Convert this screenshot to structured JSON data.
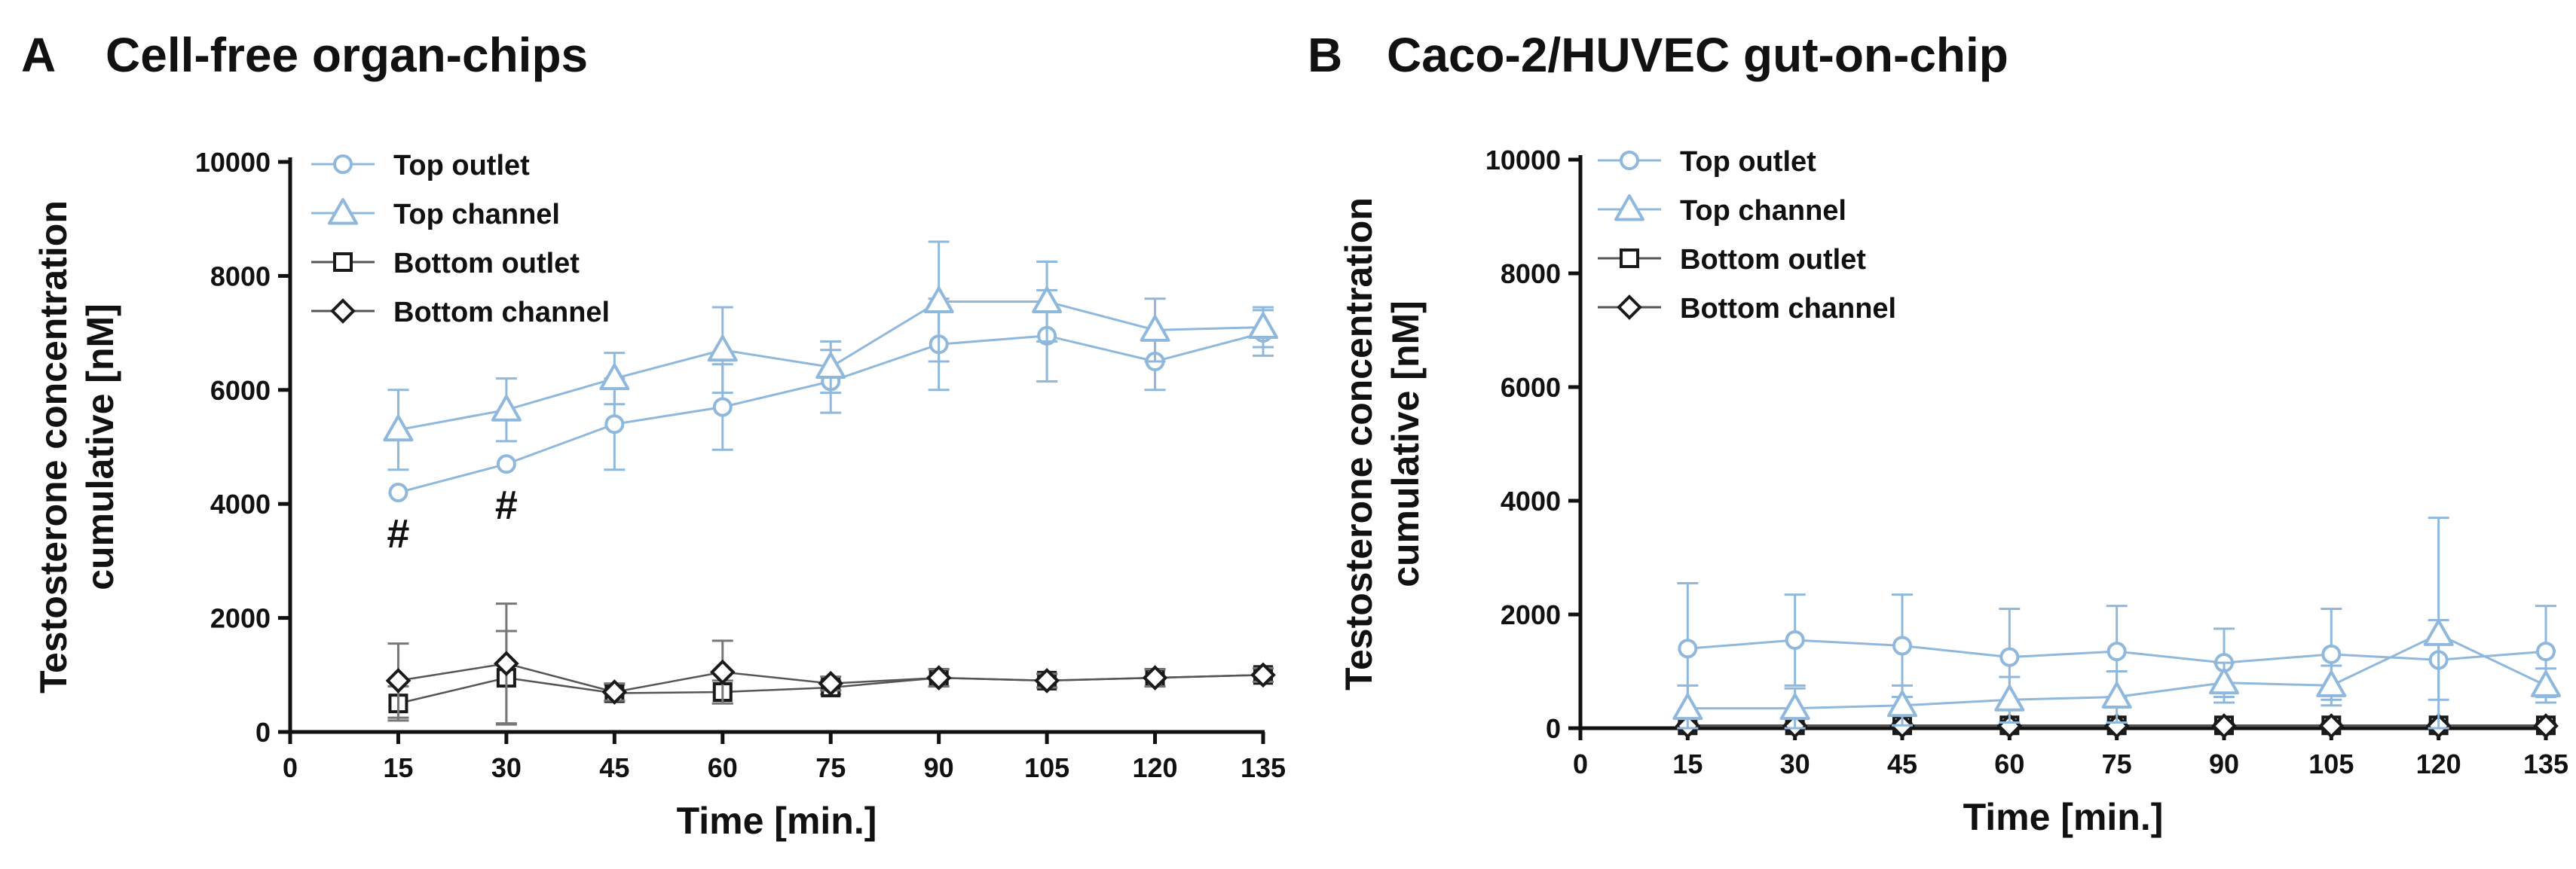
{
  "colors": {
    "blue": "#8fb8dc",
    "black": "#1a1a1a",
    "dark_line": "#444444"
  },
  "chart_data": [
    {
      "type": "line",
      "panel_letter": "A",
      "title": "Cell-free organ-chips",
      "ylabel_lines": [
        "Testosterone concentration",
        "cumulative [nM]"
      ],
      "xlabel": "Time [min.]",
      "xlim": [
        0,
        135
      ],
      "ylim": [
        0,
        10000
      ],
      "x_ticks": [
        0,
        15,
        30,
        45,
        60,
        75,
        90,
        105,
        120,
        135
      ],
      "y_ticks": [
        0,
        2000,
        4000,
        6000,
        8000,
        10000
      ],
      "x": [
        15,
        30,
        45,
        60,
        75,
        90,
        105,
        120,
        135
      ],
      "series": [
        {
          "name": "Top outlet",
          "marker": "circle",
          "color": "#8fb8dc",
          "values": [
            4200,
            4700,
            5400,
            5700,
            6150,
            6800,
            6950,
            6500,
            7000
          ],
          "errors": [
            0,
            0,
            800,
            750,
            550,
            800,
            800,
            500,
            400
          ]
        },
        {
          "name": "Top channel",
          "marker": "triangle",
          "color": "#8fb8dc",
          "values": [
            5300,
            5650,
            6200,
            6700,
            6400,
            7550,
            7550,
            7050,
            7100
          ],
          "errors": [
            700,
            550,
            450,
            750,
            450,
            1050,
            700,
            550,
            350
          ]
        },
        {
          "name": "Bottom outlet",
          "marker": "square",
          "color": "#1a1a1a",
          "values": [
            500,
            950,
            680,
            700,
            780,
            950,
            900,
            950,
            1000
          ],
          "errors": [
            300,
            820,
            150,
            200,
            120,
            150,
            120,
            150,
            120
          ]
        },
        {
          "name": "Bottom channel",
          "marker": "diamond",
          "color": "#1a1a1a",
          "values": [
            900,
            1200,
            700,
            1050,
            850,
            950,
            900,
            950,
            1000
          ],
          "errors": [
            650,
            1050,
            150,
            550,
            120,
            150,
            120,
            150,
            120
          ]
        }
      ],
      "annotations": [
        {
          "x": 15,
          "y": 3500,
          "text": "#"
        },
        {
          "x": 30,
          "y": 4000,
          "text": "#"
        }
      ],
      "legend": "top-left"
    },
    {
      "type": "line",
      "panel_letter": "B",
      "title": "Caco-2/HUVEC gut-on-chip",
      "ylabel_lines": [
        "Testosterone concentration",
        "cumulative [nM]"
      ],
      "xlabel": "Time [min.]",
      "xlim": [
        0,
        135
      ],
      "ylim": [
        0,
        10000
      ],
      "x_ticks": [
        0,
        15,
        30,
        45,
        60,
        75,
        90,
        105,
        120,
        135
      ],
      "y_ticks": [
        0,
        2000,
        4000,
        6000,
        8000,
        10000
      ],
      "x": [
        15,
        30,
        45,
        60,
        75,
        90,
        105,
        120,
        135
      ],
      "series": [
        {
          "name": "Top outlet",
          "marker": "circle",
          "color": "#8fb8dc",
          "values": [
            1400,
            1550,
            1450,
            1250,
            1350,
            1150,
            1300,
            1200,
            1350
          ],
          "errors": [
            1150,
            800,
            900,
            850,
            800,
            600,
            800,
            700,
            800
          ]
        },
        {
          "name": "Top channel",
          "marker": "triangle",
          "color": "#8fb8dc",
          "values": [
            350,
            350,
            400,
            500,
            550,
            800,
            750,
            1650,
            750
          ],
          "errors": [
            400,
            350,
            350,
            400,
            450,
            350,
            350,
            2050,
            300
          ]
        },
        {
          "name": "Bottom outlet",
          "marker": "square",
          "color": "#1a1a1a",
          "values": [
            50,
            50,
            50,
            50,
            50,
            50,
            50,
            50,
            50
          ],
          "errors": [
            30,
            30,
            30,
            30,
            30,
            30,
            30,
            30,
            30
          ]
        },
        {
          "name": "Bottom channel",
          "marker": "diamond",
          "color": "#1a1a1a",
          "values": [
            40,
            40,
            40,
            40,
            40,
            40,
            40,
            40,
            40
          ],
          "errors": [
            20,
            20,
            20,
            20,
            20,
            20,
            20,
            20,
            20
          ]
        }
      ],
      "annotations": [],
      "legend": "top-left"
    }
  ]
}
